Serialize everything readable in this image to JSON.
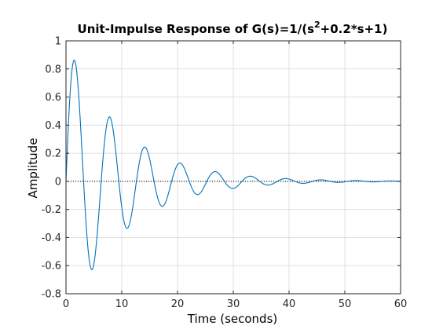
{
  "chart_data": {
    "type": "line",
    "title_main": "Unit-Impulse Response of G(s)=1/(s",
    "title_sup": "2",
    "title_tail": "+0.2*s+1)",
    "xlabel": "Time (seconds)",
    "ylabel": "Amplitude",
    "xlim": [
      0,
      60
    ],
    "ylim": [
      -0.8,
      1
    ],
    "xticks": [
      0,
      10,
      20,
      30,
      40,
      50,
      60
    ],
    "yticks": [
      -0.8,
      -0.6,
      -0.4,
      -0.2,
      0,
      0.2,
      0.4,
      0.6,
      0.8,
      1
    ],
    "xtick_labels": [
      "0",
      "10",
      "20",
      "30",
      "40",
      "50",
      "60"
    ],
    "ytick_labels": [
      "-0.8",
      "-0.6",
      "-0.4",
      "-0.2",
      "0",
      "0.2",
      "0.4",
      "0.6",
      "0.8",
      "1"
    ],
    "grid": true,
    "reference_line": {
      "y": 0,
      "style": "dotted",
      "color": "#000000"
    },
    "series": [
      {
        "color": "#0072BD",
        "function": "exp(-0.1*t)*sin(0.99499*t)/0.99499",
        "key_points": [
          {
            "x": 0,
            "y": 0
          },
          {
            "x": 1.47,
            "y": 0.86
          },
          {
            "x": 4.63,
            "y": -0.63
          },
          {
            "x": 7.78,
            "y": 0.46
          },
          {
            "x": 10.94,
            "y": -0.34
          },
          {
            "x": 14.1,
            "y": 0.25
          },
          {
            "x": 17.26,
            "y": -0.18
          },
          {
            "x": 20.42,
            "y": 0.13
          },
          {
            "x": 23.57,
            "y": -0.095
          },
          {
            "x": 26.73,
            "y": 0.07
          },
          {
            "x": 29.89,
            "y": -0.051
          },
          {
            "x": 33.05,
            "y": 0.037
          },
          {
            "x": 36.2,
            "y": -0.027
          },
          {
            "x": 39.36,
            "y": 0.02
          },
          {
            "x": 60,
            "y": 0.0
          }
        ]
      }
    ],
    "colors": {
      "background": "#ffffff",
      "grid": "#dfdfdf",
      "axes": "#262626",
      "line": "#0072BD"
    }
  }
}
